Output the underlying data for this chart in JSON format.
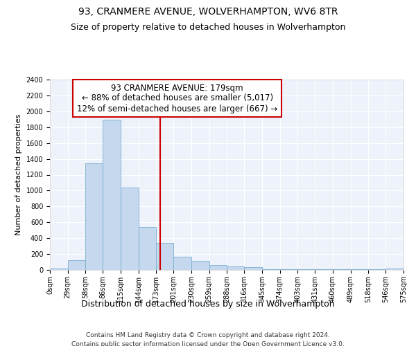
{
  "title": "93, CRANMERE AVENUE, WOLVERHAMPTON, WV6 8TR",
  "subtitle": "Size of property relative to detached houses in Wolverhampton",
  "xlabel": "Distribution of detached houses by size in Wolverhampton",
  "ylabel": "Number of detached properties",
  "bar_color": "#c5d8ed",
  "bar_edge_color": "#7bafd4",
  "background_color": "#eef2fb",
  "grid_color": "#ffffff",
  "annotation_line_color": "#cc0000",
  "annotation_box_color": "#cc0000",
  "annotation_line1": "93 CRANMERE AVENUE: 179sqm",
  "annotation_line2": "← 88% of detached houses are smaller (5,017)",
  "annotation_line3": "12% of semi-detached houses are larger (667) →",
  "property_size": 179,
  "bins": [
    0,
    29,
    58,
    86,
    115,
    144,
    173,
    201,
    230,
    259,
    288,
    316,
    345,
    374,
    403,
    431,
    460,
    489,
    518,
    546,
    575
  ],
  "bin_labels": [
    "0sqm",
    "29sqm",
    "58sqm",
    "86sqm",
    "115sqm",
    "144sqm",
    "173sqm",
    "201sqm",
    "230sqm",
    "259sqm",
    "288sqm",
    "316sqm",
    "345sqm",
    "374sqm",
    "403sqm",
    "431sqm",
    "460sqm",
    "489sqm",
    "518sqm",
    "546sqm",
    "575sqm"
  ],
  "counts": [
    15,
    125,
    1340,
    1890,
    1040,
    540,
    340,
    170,
    110,
    65,
    42,
    32,
    5,
    5,
    5,
    5,
    5,
    5,
    5,
    15
  ],
  "ylim": [
    0,
    2400
  ],
  "yticks": [
    0,
    200,
    400,
    600,
    800,
    1000,
    1200,
    1400,
    1600,
    1800,
    2000,
    2200,
    2400
  ],
  "footer_line1": "Contains HM Land Registry data © Crown copyright and database right 2024.",
  "footer_line2": "Contains public sector information licensed under the Open Government Licence v3.0.",
  "title_fontsize": 10,
  "subtitle_fontsize": 9,
  "xlabel_fontsize": 9,
  "ylabel_fontsize": 8,
  "tick_fontsize": 7,
  "footer_fontsize": 6.5,
  "ann_fontsize": 8.5
}
